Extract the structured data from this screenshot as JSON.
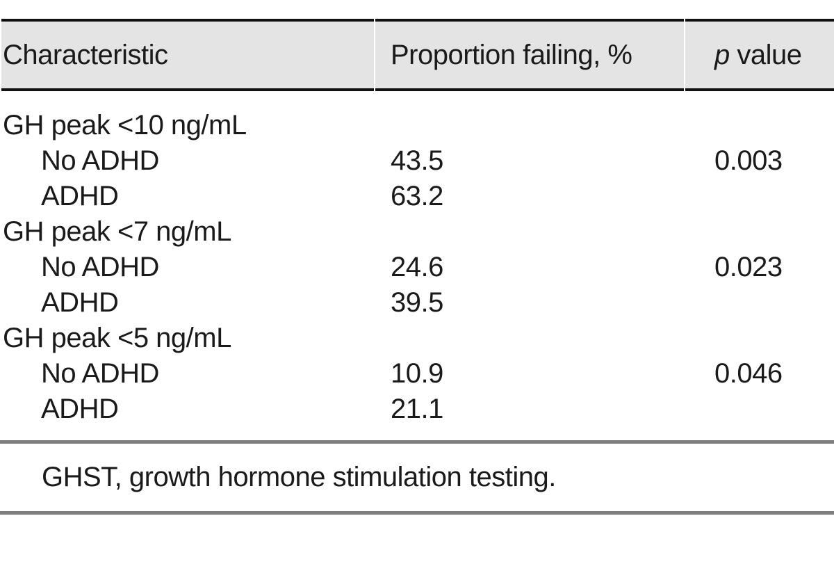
{
  "meta": {
    "background_color": "#ffffff",
    "header_background_color": "#e4e4e4",
    "heavy_rule_color": "#101010",
    "light_rule_color": "#7e7e7e",
    "text_color": "#1a1a1a"
  },
  "table": {
    "header": {
      "characteristic": "Characteristic",
      "proportion": "Proportion failing, %",
      "p_italic": "p",
      "p_suffix": " value"
    },
    "rows": [
      {
        "label": "GH peak <10 ng/mL",
        "indent": false,
        "proportion": "",
        "p_value": ""
      },
      {
        "label": "No ADHD",
        "indent": true,
        "proportion": "43.5",
        "p_value": "0.003"
      },
      {
        "label": "ADHD",
        "indent": true,
        "proportion": "63.2",
        "p_value": ""
      },
      {
        "label": "GH peak <7 ng/mL",
        "indent": false,
        "proportion": "",
        "p_value": ""
      },
      {
        "label": "No ADHD",
        "indent": true,
        "proportion": "24.6",
        "p_value": "0.023"
      },
      {
        "label": "ADHD",
        "indent": true,
        "proportion": "39.5",
        "p_value": ""
      },
      {
        "label": "GH peak <5 ng/mL",
        "indent": false,
        "proportion": "",
        "p_value": ""
      },
      {
        "label": "No ADHD",
        "indent": true,
        "proportion": "10.9",
        "p_value": "0.046"
      },
      {
        "label": "ADHD",
        "indent": true,
        "proportion": "21.1",
        "p_value": ""
      }
    ],
    "footnote": "GHST, growth hormone stimulation testing."
  }
}
